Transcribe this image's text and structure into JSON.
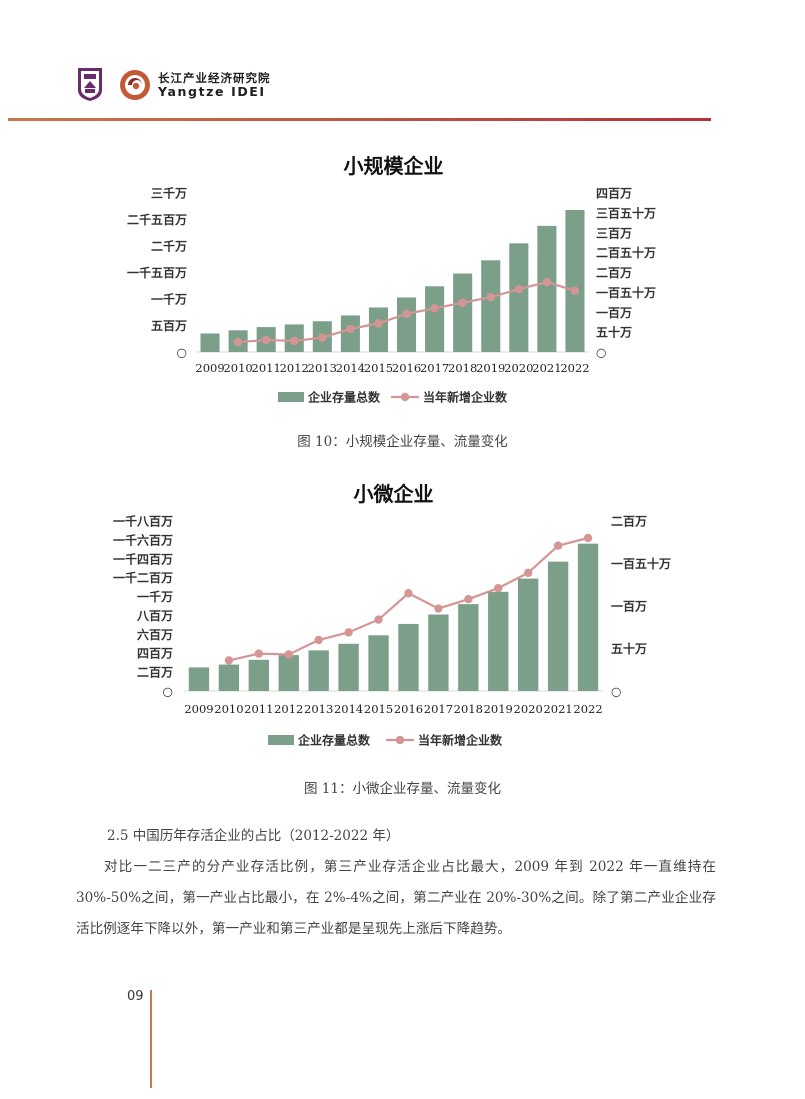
{
  "header": {
    "institute_cn": "长江产业经济研究院",
    "institute_en": "Yangtze IDEI",
    "seal_icon": "university-seal-icon",
    "mark_icon": "institute-logo-icon",
    "rule_colors": [
      "#c8784a",
      "#b5323b"
    ]
  },
  "colors": {
    "bar": "#7c9f8a",
    "line": "#d59594"
  },
  "figures": [
    {
      "caption": "图 10：小规模企业存量、流量变化",
      "chart_data": {
        "type": "bar+line",
        "title": "小规模企业",
        "categories": [
          "2009",
          "2010",
          "2011",
          "2012",
          "2013",
          "2014",
          "2015",
          "2016",
          "2017",
          "2018",
          "2019",
          "2020",
          "2021",
          "2022"
        ],
        "left_axis": {
          "ticks": [
            0,
            5000000,
            10000000,
            15000000,
            20000000,
            25000000,
            30000000
          ],
          "tick_labels": [
            "○",
            "五百万",
            "一千万",
            "一千五百万",
            "二千万",
            "二千五百万",
            "三千万"
          ],
          "range": [
            0,
            30000000
          ]
        },
        "right_axis": {
          "ticks": [
            0,
            500000,
            1000000,
            1500000,
            2000000,
            2500000,
            3000000,
            3500000,
            4000000
          ],
          "tick_labels": [
            "○",
            "五十万",
            "一百万",
            "一百五十万",
            "二百万",
            "二百五十万",
            "三百万",
            "三百五十万",
            "四百万"
          ],
          "range": [
            0,
            4000000
          ]
        },
        "series": [
          {
            "name": "企业存量总数",
            "type": "bar",
            "axis": "left",
            "values": [
              3500000,
              4100000,
              4700000,
              5200000,
              5800000,
              6900000,
              8400000,
              10300000,
              12400000,
              14800000,
              17300000,
              20500000,
              23800000,
              26800000
            ]
          },
          {
            "name": "当年新增企业数",
            "type": "line",
            "axis": "right",
            "values": [
              null,
              250000,
              300000,
              280000,
              360000,
              580000,
              720000,
              960000,
              1100000,
              1240000,
              1380000,
              1580000,
              1760000,
              1540000
            ]
          }
        ],
        "legend": "bottom"
      }
    },
    {
      "caption": "图 11：小微企业存量、流量变化",
      "chart_data": {
        "type": "bar+line",
        "title": "小微企业",
        "categories": [
          "2009",
          "2010",
          "2011",
          "2012",
          "2013",
          "2014",
          "2015",
          "2016",
          "2017",
          "2018",
          "2019",
          "2020",
          "2021",
          "2022"
        ],
        "left_axis": {
          "ticks": [
            0,
            2000000,
            4000000,
            6000000,
            8000000,
            10000000,
            12000000,
            14000000,
            16000000,
            18000000
          ],
          "tick_labels": [
            "○",
            "二百万",
            "四百万",
            "六百万",
            "八百万",
            "一千万",
            "一千二百万",
            "一千四百万",
            "一千六百万",
            "一千八百万"
          ],
          "range": [
            0,
            18000000
          ]
        },
        "right_axis": {
          "ticks": [
            0,
            500000,
            1000000,
            1500000,
            2000000
          ],
          "tick_labels": [
            "○",
            "五十万",
            "一百万",
            "一百五十万",
            "二百万"
          ],
          "range": [
            0,
            2000000
          ]
        },
        "series": [
          {
            "name": "企业存量总数",
            "type": "bar",
            "axis": "left",
            "values": [
              2500000,
              2800000,
              3300000,
              3800000,
              4300000,
              5000000,
              5900000,
              7100000,
              8100000,
              9200000,
              10500000,
              11900000,
              13700000,
              15600000
            ]
          },
          {
            "name": "当年新增企业数",
            "type": "line",
            "axis": "right",
            "values": [
              null,
              360000,
              440000,
              430000,
              600000,
              690000,
              840000,
              1150000,
              970000,
              1080000,
              1210000,
              1390000,
              1710000,
              1800000
            ]
          }
        ],
        "legend": "bottom"
      }
    }
  ],
  "section": {
    "heading": "2.5 中国历年存活企业的占比（2012-2022 年）",
    "paragraph": "对比一二三产的分产业存活比例，第三产业存活企业占比最大，2009 年到 2022 年一直维持在 30%-50%之间，第一产业占比最小，在 2%-4%之间，第二产业在 20%-30%之间。除了第二产业企业存活比例逐年下降以外，第一产业和第三产业都是呈现先上涨后下降趋势。"
  },
  "footer": {
    "page_number": "09"
  }
}
